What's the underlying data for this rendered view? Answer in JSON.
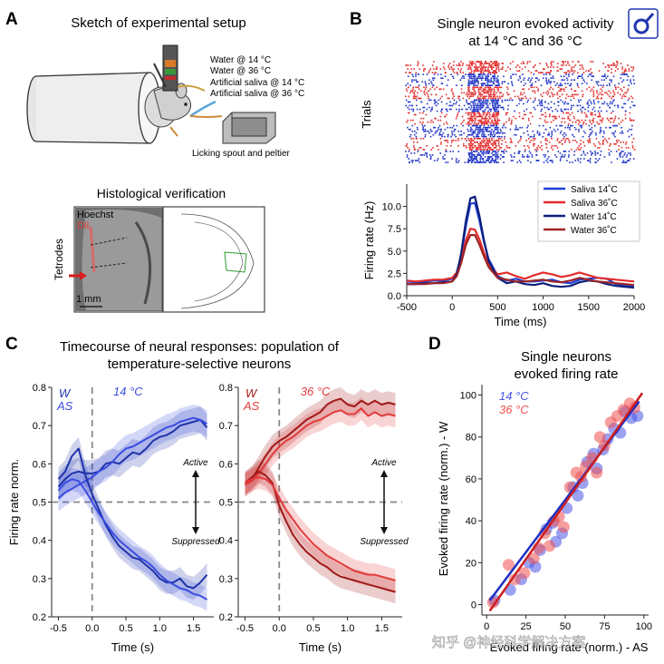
{
  "panel_a": {
    "letter": "A",
    "title": "Sketch of experimental setup",
    "legend": [
      "Water @ 14 °C",
      "Water @ 36 °C",
      "Artificial saliva @ 14 °C",
      "Artificial saliva @ 36 °C"
    ],
    "spout_label": "Licking spout and peltier",
    "histo_title": "Histological verification",
    "stain1": "Hoechst",
    "stain2": "DiI",
    "tetrodes": "Tetrodes",
    "scale": "1 mm",
    "colors": {
      "dil": "#e23a3a",
      "arrow": "#d81e1e",
      "spout": "#5aa6d8"
    }
  },
  "panel_b": {
    "letter": "B",
    "title_line1": "Single neuron evoked activity",
    "title_line2": "at 14 °C and 36 °C",
    "raster_label": "Trials"
  },
  "panel_c": {
    "letter": "C",
    "title_line1": "Timecourse of neural responses: population of",
    "title_line2": "temperature-selective neurons",
    "w_label": "W",
    "as_label": "AS",
    "active": "Active",
    "suppressed": "Suppressed"
  },
  "panel_d": {
    "letter": "D",
    "title_line1": "Single neurons",
    "title_line2": "evoked firing rate",
    "legend": [
      "14 °C",
      "36 °C"
    ]
  },
  "watermark": "知乎 @神经科学解决方案",
  "search_icon_label": "search-icon",
  "chart_data": [
    {
      "id": "B-psth",
      "type": "line",
      "xlabel": "Time (ms)",
      "ylabel": "Firing rate (Hz)",
      "xlim": [
        -500,
        2000
      ],
      "ylim": [
        0,
        12.5
      ],
      "xticks": [
        -500,
        0,
        500,
        1000,
        1500,
        2000
      ],
      "yticks": [
        0.0,
        2.5,
        5.0,
        7.5,
        10.0
      ],
      "ytick_labels": [
        "0.0",
        "2.5",
        "5.0",
        "7.5",
        "10.0"
      ],
      "x": [
        -500,
        -400,
        -300,
        -200,
        -100,
        0,
        50,
        100,
        150,
        200,
        250,
        300,
        350,
        400,
        500,
        600,
        700,
        800,
        900,
        1000,
        1100,
        1200,
        1300,
        1400,
        1500,
        1600,
        1700,
        1800,
        1900,
        2000
      ],
      "series": [
        {
          "name": "Saliva 14˚C",
          "color": "#1f3fd6",
          "values": [
            1.6,
            1.5,
            1.6,
            1.7,
            1.7,
            1.9,
            2.6,
            4.5,
            7.8,
            10.3,
            10.4,
            8.4,
            6.0,
            4.1,
            2.2,
            1.7,
            1.9,
            1.6,
            1.6,
            1.7,
            1.8,
            1.5,
            1.4,
            1.8,
            1.9,
            2.0,
            1.9,
            1.3,
            1.1,
            1.0
          ]
        },
        {
          "name": "Saliva 36˚C",
          "color": "#e32b2b",
          "values": [
            1.7,
            1.6,
            1.7,
            1.8,
            1.8,
            2.0,
            2.6,
            4.1,
            6.2,
            7.5,
            7.4,
            6.3,
            4.8,
            3.5,
            2.4,
            2.6,
            2.2,
            1.9,
            2.3,
            2.6,
            2.4,
            2.1,
            2.3,
            2.6,
            2.3,
            2.0,
            1.9,
            1.8,
            1.7,
            1.6
          ]
        },
        {
          "name": "Water 14˚C",
          "color": "#0c1f7a",
          "values": [
            1.3,
            1.3,
            1.4,
            1.4,
            1.5,
            1.6,
            2.4,
            4.8,
            8.4,
            10.9,
            11.1,
            8.9,
            6.2,
            3.9,
            2.0,
            1.4,
            1.6,
            1.3,
            1.2,
            1.4,
            1.1,
            1.0,
            1.1,
            1.5,
            1.7,
            1.6,
            1.3,
            1.1,
            1.0,
            0.9
          ]
        },
        {
          "name": "Water 36˚C",
          "color": "#9c2424",
          "values": [
            1.3,
            1.3,
            1.3,
            1.4,
            1.4,
            1.6,
            2.2,
            3.7,
            5.7,
            6.8,
            6.8,
            5.7,
            4.4,
            3.2,
            2.0,
            1.8,
            1.6,
            1.6,
            1.7,
            1.8,
            1.6,
            1.5,
            1.7,
            2.0,
            1.8,
            1.6,
            1.5,
            1.4,
            1.3,
            1.2
          ]
        }
      ]
    },
    {
      "id": "C-14C",
      "type": "line",
      "title": "14 °C",
      "xlabel": "Time (s)",
      "ylabel": "Firing rate norm.",
      "xlim": [
        -0.6,
        1.8
      ],
      "ylim": [
        0.2,
        0.8
      ],
      "xticks": [
        -0.5,
        0.0,
        0.5,
        1.0,
        1.5
      ],
      "xtick_labels": [
        "-0.5",
        "0.0",
        "0.5",
        "1.0",
        "1.5"
      ],
      "yticks": [
        0.2,
        0.3,
        0.4,
        0.5,
        0.6,
        0.7,
        0.8
      ],
      "ytick_labels": [
        "0.2",
        "0.3",
        "0.4",
        "0.5",
        "0.6",
        "0.7",
        "0.8"
      ],
      "x": [
        -0.5,
        -0.4,
        -0.3,
        -0.2,
        -0.1,
        0.0,
        0.1,
        0.2,
        0.3,
        0.4,
        0.5,
        0.6,
        0.7,
        0.8,
        0.9,
        1.0,
        1.1,
        1.2,
        1.3,
        1.4,
        1.5,
        1.6,
        1.7
      ],
      "series": [
        {
          "name": "W active",
          "color": "#1f33a8",
          "band": 0.035,
          "values": [
            0.54,
            0.56,
            0.575,
            0.58,
            0.575,
            0.575,
            0.58,
            0.6,
            0.605,
            0.6,
            0.615,
            0.63,
            0.625,
            0.64,
            0.66,
            0.67,
            0.675,
            0.685,
            0.7,
            0.705,
            0.71,
            0.715,
            0.695
          ]
        },
        {
          "name": "AS active",
          "color": "#3b4ce0",
          "band": 0.035,
          "values": [
            0.51,
            0.525,
            0.535,
            0.545,
            0.555,
            0.565,
            0.58,
            0.59,
            0.605,
            0.625,
            0.64,
            0.645,
            0.655,
            0.665,
            0.675,
            0.685,
            0.695,
            0.7,
            0.71,
            0.715,
            0.72,
            0.715,
            0.705
          ]
        },
        {
          "name": "W suppressed",
          "color": "#1f33a8",
          "band": 0.03,
          "values": [
            0.56,
            0.58,
            0.62,
            0.64,
            0.57,
            0.52,
            0.48,
            0.44,
            0.41,
            0.385,
            0.37,
            0.355,
            0.35,
            0.335,
            0.32,
            0.3,
            0.29,
            0.29,
            0.3,
            0.28,
            0.275,
            0.29,
            0.31
          ]
        },
        {
          "name": "AS suppressed",
          "color": "#3b4ce0",
          "band": 0.03,
          "values": [
            0.53,
            0.55,
            0.56,
            0.555,
            0.53,
            0.5,
            0.47,
            0.445,
            0.42,
            0.4,
            0.385,
            0.37,
            0.355,
            0.345,
            0.33,
            0.31,
            0.295,
            0.285,
            0.275,
            0.27,
            0.26,
            0.255,
            0.245
          ]
        }
      ]
    },
    {
      "id": "C-36C",
      "type": "line",
      "title": "36 °C",
      "xlabel": "Time (s)",
      "ylabel": "",
      "xlim": [
        -0.6,
        1.8
      ],
      "ylim": [
        0.2,
        0.8
      ],
      "xticks": [
        -0.5,
        0.0,
        0.5,
        1.0,
        1.5
      ],
      "xtick_labels": [
        "-0.5",
        "0.0",
        "0.5",
        "1.0",
        "1.5"
      ],
      "yticks": [
        0.2,
        0.3,
        0.4,
        0.5,
        0.6,
        0.7,
        0.8
      ],
      "ytick_labels": [
        "0.2",
        "0.3",
        "0.4",
        "0.5",
        "0.6",
        "0.7",
        "0.8"
      ],
      "x": [
        -0.5,
        -0.4,
        -0.3,
        -0.2,
        -0.1,
        0.0,
        0.1,
        0.2,
        0.3,
        0.4,
        0.5,
        0.6,
        0.7,
        0.8,
        0.9,
        1.0,
        1.1,
        1.2,
        1.3,
        1.4,
        1.5,
        1.6,
        1.7
      ],
      "series": [
        {
          "name": "W active",
          "color": "#a01818",
          "band": 0.03,
          "values": [
            0.545,
            0.56,
            0.59,
            0.62,
            0.645,
            0.66,
            0.67,
            0.685,
            0.7,
            0.715,
            0.725,
            0.735,
            0.755,
            0.765,
            0.77,
            0.755,
            0.75,
            0.765,
            0.755,
            0.765,
            0.755,
            0.76,
            0.755
          ]
        },
        {
          "name": "AS active",
          "color": "#e23b3b",
          "band": 0.03,
          "values": [
            0.545,
            0.555,
            0.575,
            0.6,
            0.625,
            0.645,
            0.66,
            0.67,
            0.685,
            0.7,
            0.71,
            0.715,
            0.725,
            0.735,
            0.74,
            0.73,
            0.73,
            0.745,
            0.725,
            0.735,
            0.725,
            0.73,
            0.725
          ]
        },
        {
          "name": "W suppressed",
          "color": "#a01818",
          "band": 0.03,
          "values": [
            0.55,
            0.565,
            0.58,
            0.57,
            0.55,
            0.49,
            0.45,
            0.415,
            0.39,
            0.37,
            0.355,
            0.34,
            0.33,
            0.315,
            0.305,
            0.3,
            0.295,
            0.29,
            0.285,
            0.28,
            0.275,
            0.27,
            0.265
          ]
        },
        {
          "name": "AS suppressed",
          "color": "#e23b3b",
          "band": 0.03,
          "values": [
            0.55,
            0.56,
            0.565,
            0.56,
            0.545,
            0.51,
            0.48,
            0.455,
            0.43,
            0.41,
            0.39,
            0.375,
            0.36,
            0.35,
            0.34,
            0.33,
            0.32,
            0.315,
            0.31,
            0.31,
            0.305,
            0.3,
            0.295
          ]
        }
      ]
    },
    {
      "id": "D-scatter",
      "type": "scatter",
      "xlabel": "Evoked firing rate (norm.) - AS",
      "ylabel": "Evoked firing rate (norm.) - W",
      "xlim": [
        -3,
        103
      ],
      "ylim": [
        -5,
        105
      ],
      "xticks": [
        0,
        25,
        50,
        75,
        100
      ],
      "yticks": [
        0,
        20,
        40,
        60,
        80,
        100
      ],
      "series": [
        {
          "name": "14 °C",
          "color": "#4a56e6",
          "fit": [
            [
              2,
              2
            ],
            [
              97,
              97
            ]
          ],
          "points": [
            [
              5,
              2
            ],
            [
              15,
              7
            ],
            [
              22,
              12
            ],
            [
              27,
              20
            ],
            [
              31,
              18
            ],
            [
              34,
              26
            ],
            [
              38,
              36
            ],
            [
              42,
              39
            ],
            [
              44,
              30
            ],
            [
              48,
              34
            ],
            [
              51,
              46
            ],
            [
              55,
              56
            ],
            [
              58,
              52
            ],
            [
              61,
              58
            ],
            [
              64,
              68
            ],
            [
              68,
              72
            ],
            [
              70,
              65
            ],
            [
              74,
              74
            ],
            [
              77,
              79
            ],
            [
              81,
              84
            ],
            [
              85,
              82
            ],
            [
              88,
              92
            ],
            [
              92,
              89
            ],
            [
              96,
              90
            ]
          ]
        },
        {
          "name": "36 °C",
          "color": "#f05050",
          "fit": [
            [
              2,
              -3
            ],
            [
              99,
              101
            ]
          ],
          "points": [
            [
              4,
              1
            ],
            [
              14,
              19
            ],
            [
              18,
              12
            ],
            [
              24,
              15
            ],
            [
              30,
              22
            ],
            [
              33,
              27
            ],
            [
              37,
              34
            ],
            [
              40,
              28
            ],
            [
              43,
              40
            ],
            [
              46,
              42
            ],
            [
              49,
              37
            ],
            [
              53,
              56
            ],
            [
              57,
              63
            ],
            [
              60,
              61
            ],
            [
              63,
              66
            ],
            [
              67,
              70
            ],
            [
              70,
              63
            ],
            [
              72,
              80
            ],
            [
              75,
              76
            ],
            [
              79,
              87
            ],
            [
              83,
              90
            ],
            [
              87,
              93
            ],
            [
              91,
              96
            ],
            [
              94,
              94
            ]
          ]
        }
      ]
    }
  ]
}
